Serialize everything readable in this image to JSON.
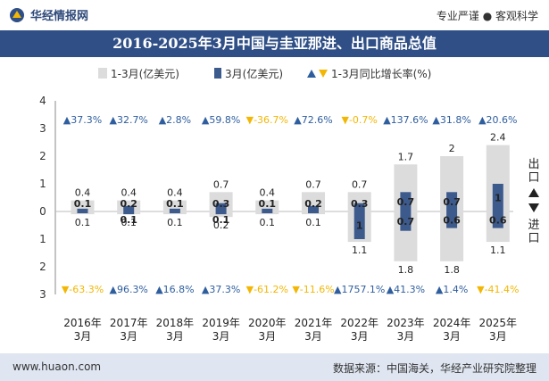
{
  "header": {
    "logo_text": "华经情报网",
    "tagline": "专业严谨 ● 客观科学"
  },
  "footer": {
    "website": "www.huaon.com",
    "source": "数据来源：中国海关，华经产业研究院整理"
  },
  "chart_data": {
    "type": "bar",
    "title": "2016-2025年3月中国与圭亚那进、出口商品总值",
    "categories": [
      "2016年\n3月",
      "2017年\n3月",
      "2018年\n3月",
      "2019年\n3月",
      "2020年\n3月",
      "2021年\n3月",
      "2022年\n3月",
      "2023年\n3月",
      "2024年\n3月",
      "2025年\n3月"
    ],
    "legend": {
      "cumulative": "1-3月(亿美元)",
      "monthly": "3月(亿美元)",
      "growth": "1-3月同比增长率(%)"
    },
    "axis": {
      "ticks_top": [
        "4",
        "3",
        "2",
        "1",
        "0"
      ],
      "ticks_bottom": [
        "1",
        "2",
        "3"
      ],
      "export_label": "出口",
      "import_label": "进口",
      "ylim": [
        -3,
        4
      ]
    },
    "export_cumulative": [
      0.4,
      0.4,
      0.4,
      0.7,
      0.4,
      0.7,
      0.7,
      1.7,
      2,
      2.4
    ],
    "export_monthly": [
      0.1,
      0.2,
      0.1,
      0.3,
      0.1,
      0.2,
      0.3,
      0.7,
      0.7,
      1
    ],
    "import_cumulative": [
      0.1,
      0.1,
      0.1,
      0.2,
      0.1,
      0.1,
      1.1,
      1.8,
      1.8,
      1.1
    ],
    "import_monthly": [
      0,
      0.1,
      0,
      0.1,
      0,
      0,
      1,
      0.7,
      0.6,
      0.6
    ],
    "export_growth": [
      {
        "label": "37.3%",
        "dir": "up"
      },
      {
        "label": "32.7%",
        "dir": "up"
      },
      {
        "label": "2.8%",
        "dir": "up"
      },
      {
        "label": "59.8%",
        "dir": "up"
      },
      {
        "label": "-36.7%",
        "dir": "down"
      },
      {
        "label": "72.6%",
        "dir": "up"
      },
      {
        "label": "-0.7%",
        "dir": "down"
      },
      {
        "label": "137.6%",
        "dir": "up"
      },
      {
        "label": "31.8%",
        "dir": "up"
      },
      {
        "label": "20.6%",
        "dir": "up"
      }
    ],
    "import_growth": [
      {
        "label": "-63.3%",
        "dir": "down"
      },
      {
        "label": "96.3%",
        "dir": "up"
      },
      {
        "label": "16.8%",
        "dir": "up"
      },
      {
        "label": "37.3%",
        "dir": "up"
      },
      {
        "label": "-61.2%",
        "dir": "down"
      },
      {
        "label": "-11.6%",
        "dir": "down"
      },
      {
        "label": "1757.1%",
        "dir": "up"
      },
      {
        "label": "41.3%",
        "dir": "up"
      },
      {
        "label": "1.4%",
        "dir": "up"
      },
      {
        "label": "-41.4%",
        "dir": "down"
      }
    ],
    "colors": {
      "cumulative": "#dcdcdc",
      "monthly": "#3c5a8c",
      "up": "#2f5e9e",
      "down": "#f2b705",
      "title_bg": "#2f4f86"
    }
  }
}
